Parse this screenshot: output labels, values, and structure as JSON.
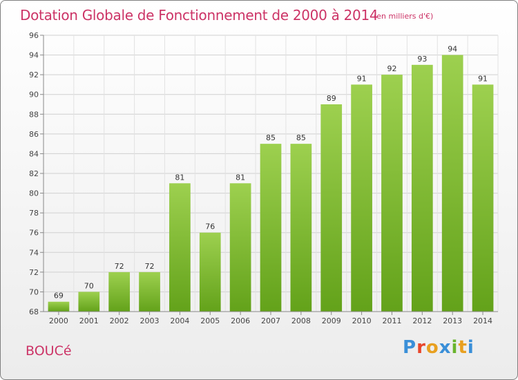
{
  "header": {
    "title": "Dotation Globale de Fonctionnement de 2000 à 2014",
    "subtitle": "(en milliers d'€)"
  },
  "footer": {
    "commune": "BOUCé",
    "logo_text": "Proxiti",
    "logo_colors": [
      "#3a8fd8",
      "#e8462b",
      "#e8a020",
      "#3a8fd8",
      "#6ab42d",
      "#e8a020",
      "#3a8fd8"
    ]
  },
  "chart_data": {
    "type": "bar",
    "title": "Dotation Globale de Fonctionnement de 2000 à 2014",
    "subtitle": "(en milliers d'€)",
    "categories": [
      "2000",
      "2001",
      "2002",
      "2003",
      "2004",
      "2005",
      "2006",
      "2007",
      "2008",
      "2009",
      "2010",
      "2011",
      "2012",
      "2013",
      "2014"
    ],
    "values": [
      69,
      70,
      72,
      72,
      81,
      76,
      81,
      85,
      85,
      89,
      91,
      92,
      93,
      94,
      91
    ],
    "ylim": [
      68,
      96
    ],
    "yticks": [
      68,
      70,
      72,
      74,
      76,
      78,
      80,
      82,
      84,
      86,
      88,
      90,
      92,
      94,
      96
    ],
    "grid": true,
    "bar_color": "#7fbf2e",
    "label_color": "#333333"
  }
}
